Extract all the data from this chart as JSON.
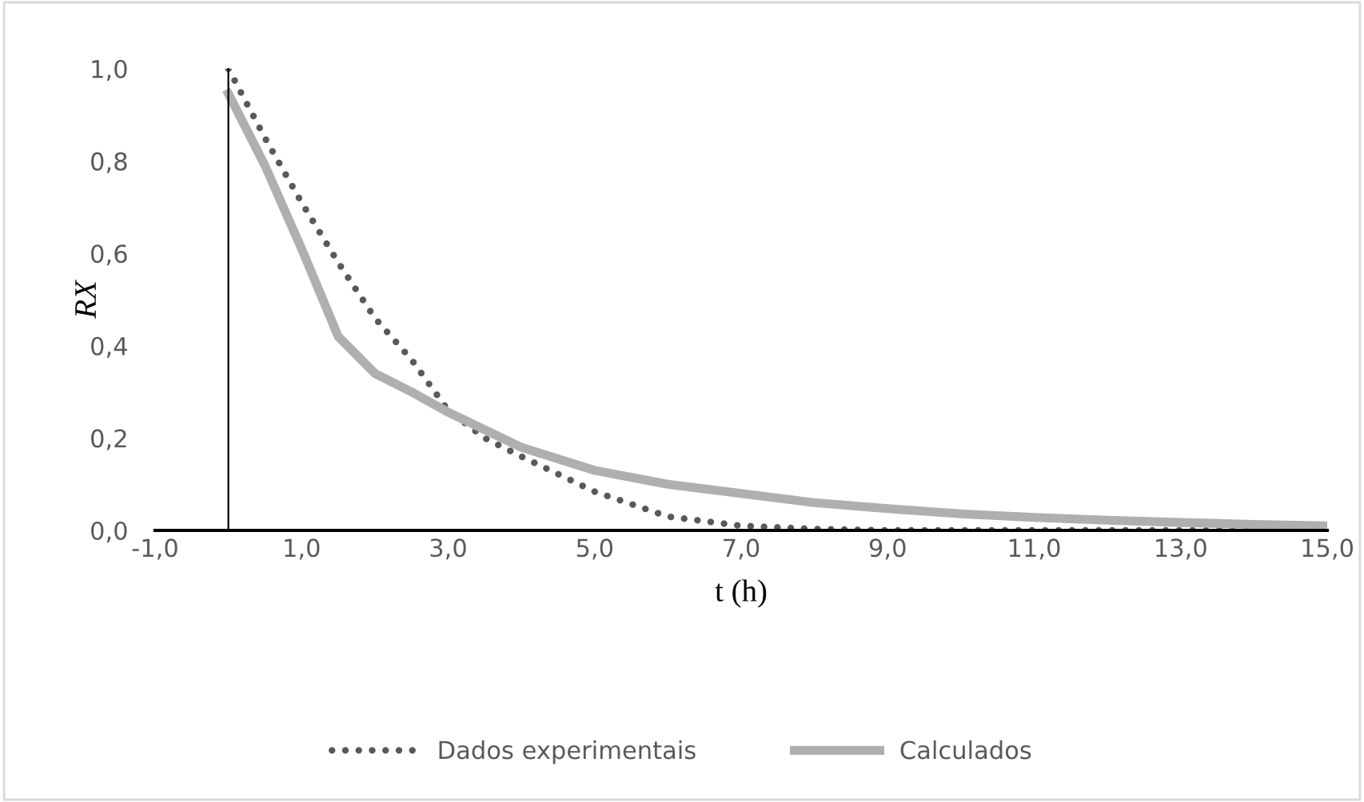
{
  "chart_data": {
    "type": "line",
    "xlabel": "t (h)",
    "ylabel": "RX",
    "xlim": [
      -1,
      15
    ],
    "xticks": [
      {
        "value": -1,
        "label": "-1,0"
      },
      {
        "value": 1,
        "label": "1,0"
      },
      {
        "value": 3,
        "label": "3,0"
      },
      {
        "value": 5,
        "label": "5,0"
      },
      {
        "value": 7,
        "label": "7,0"
      },
      {
        "value": 9,
        "label": "9,0"
      },
      {
        "value": 11,
        "label": "11,0"
      },
      {
        "value": 13,
        "label": "13,0"
      },
      {
        "value": 15,
        "label": "15,0"
      }
    ],
    "ylim": [
      0,
      1
    ],
    "yticks": [
      {
        "value": 0,
        "label": "0,0"
      },
      {
        "value": 0.2,
        "label": "0,2"
      },
      {
        "value": 0.4,
        "label": "0,4"
      },
      {
        "value": 0.6,
        "label": "0,6"
      },
      {
        "value": 0.8,
        "label": "0,8"
      },
      {
        "value": 1,
        "label": "1,0"
      }
    ],
    "grid": false,
    "legend": "bottom",
    "series": [
      {
        "name": "Dados experimentais",
        "color": "#595959",
        "line_style": "dotted",
        "x": [
          0,
          0.5,
          1,
          1.5,
          2,
          2.5,
          3,
          3.5,
          4,
          5,
          6,
          7,
          8,
          9,
          10,
          11,
          12,
          13,
          14,
          15
        ],
        "values": [
          1.0,
          0.85,
          0.71,
          0.58,
          0.46,
          0.37,
          0.26,
          0.2,
          0.16,
          0.084,
          0.03,
          0.01,
          0.003,
          0,
          0,
          0,
          0,
          0,
          0,
          0
        ]
      },
      {
        "name": "Calculados",
        "color": "#afafaf",
        "line_style": "solid",
        "x": [
          0,
          0.5,
          1,
          1.5,
          2,
          2.5,
          3,
          4,
          5,
          6,
          7,
          8,
          9,
          10,
          11,
          12,
          13,
          14,
          15
        ],
        "values": [
          0.946,
          0.79,
          0.61,
          0.42,
          0.34,
          0.3,
          0.256,
          0.18,
          0.13,
          0.1,
          0.08,
          0.06,
          0.047,
          0.036,
          0.028,
          0.022,
          0.017,
          0.013,
          0.01
        ]
      }
    ]
  }
}
